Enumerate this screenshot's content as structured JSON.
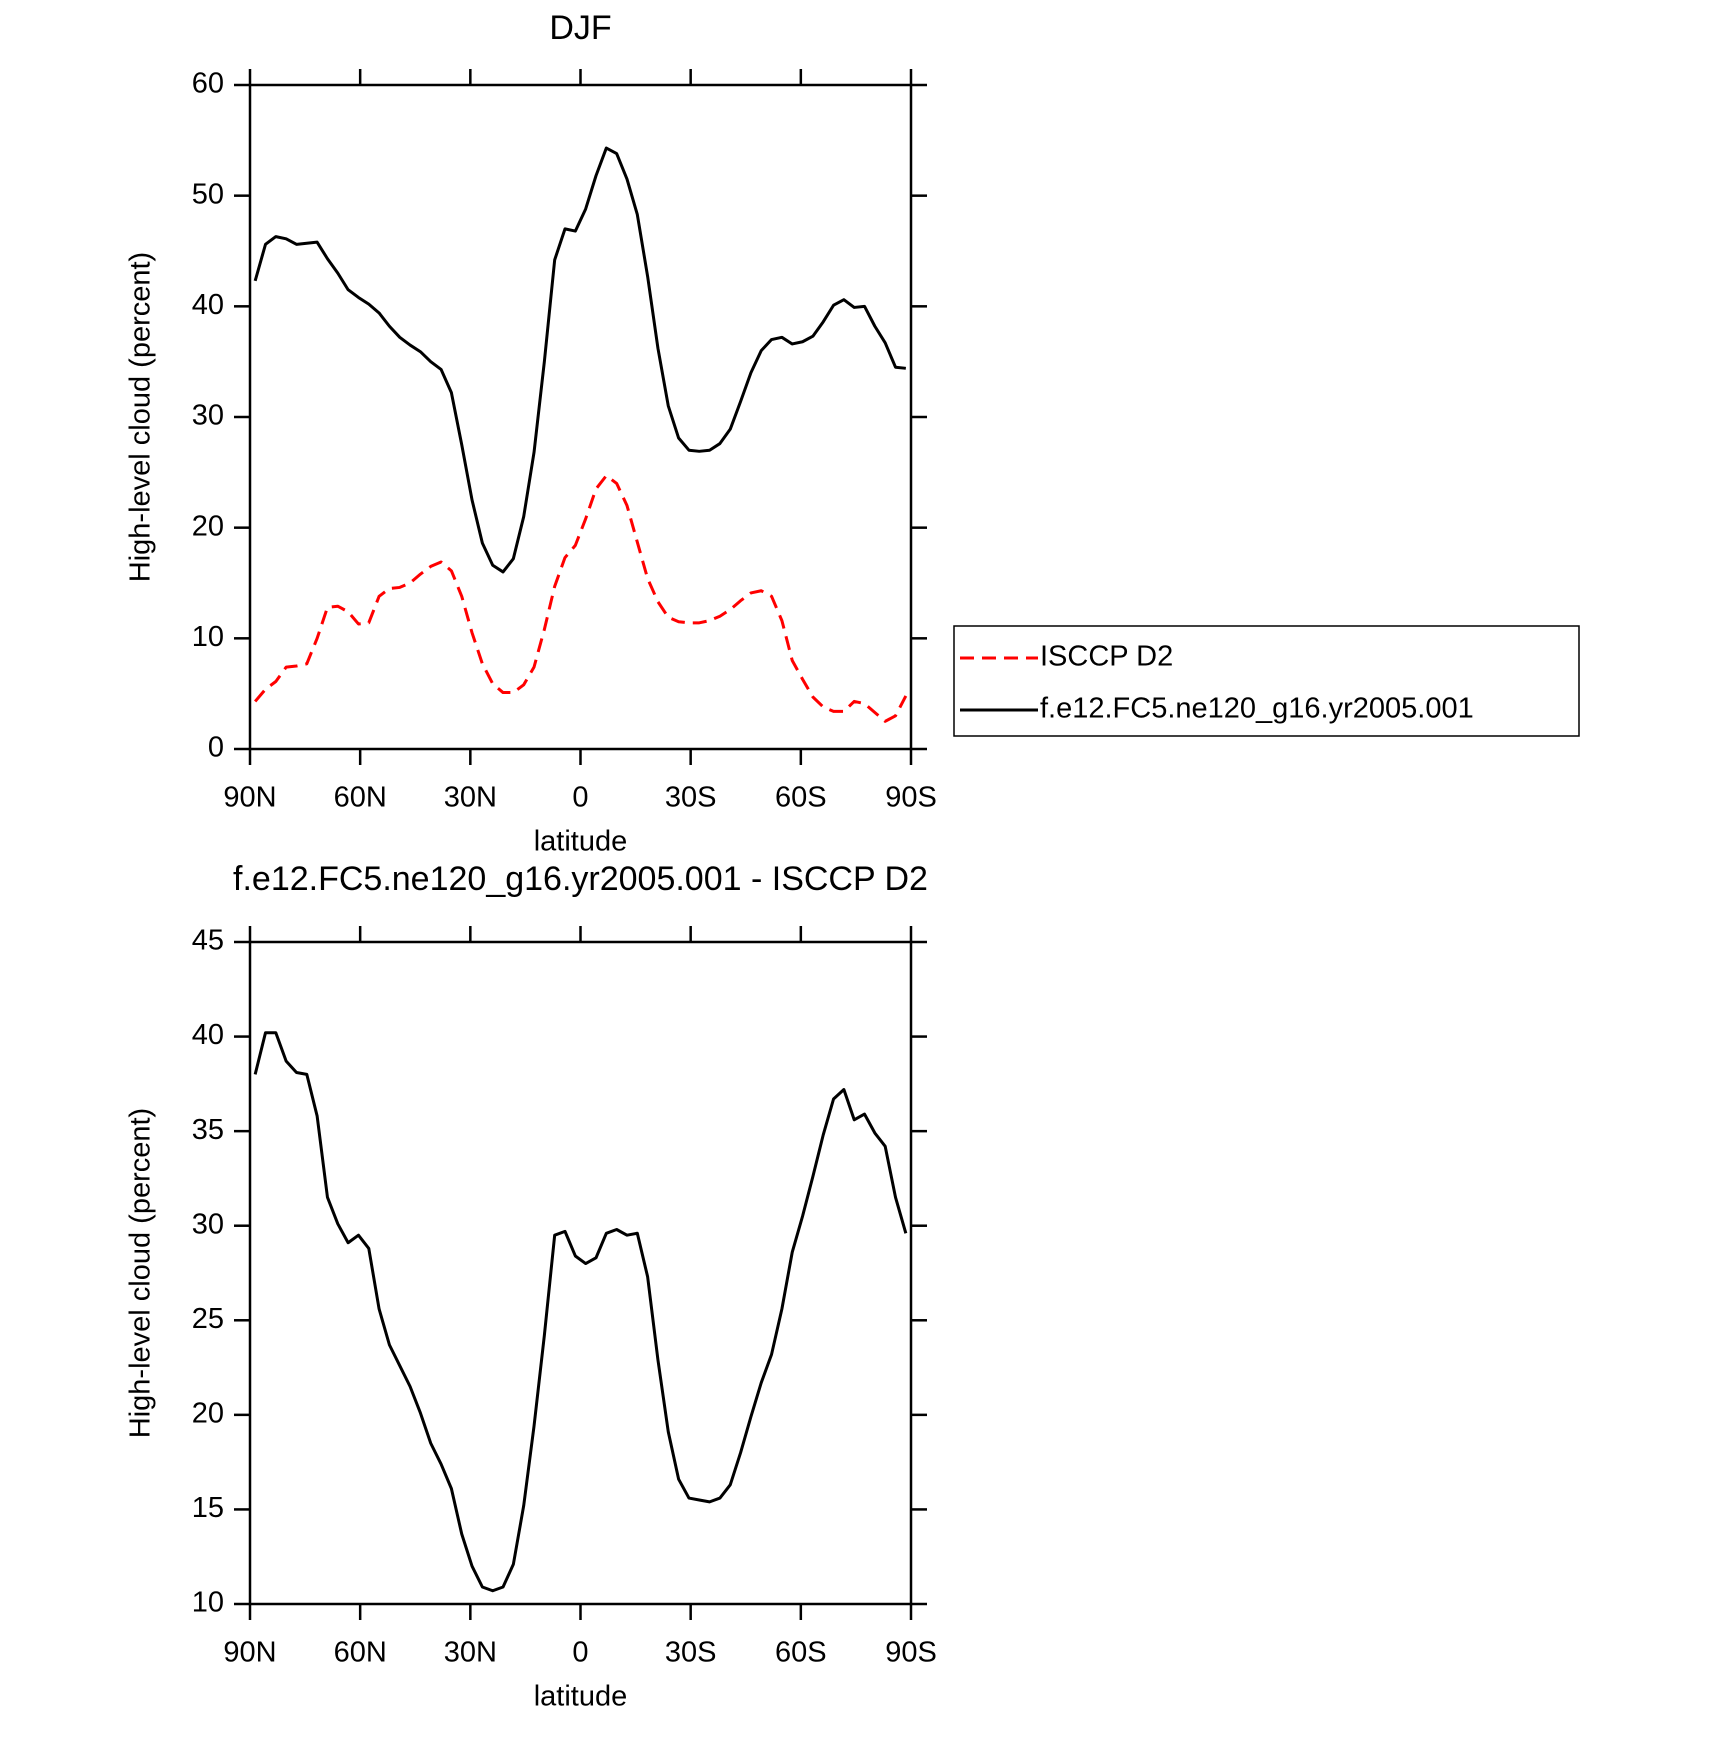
{
  "chart_data": [
    {
      "type": "line",
      "title": "DJF",
      "xlabel": "latitude",
      "ylabel": "High-level cloud (percent)",
      "x": [
        88.59375,
        85.78125,
        82.96875,
        80.15625,
        77.34375,
        74.53125,
        71.71875,
        68.90625,
        66.09375,
        63.28125,
        60.46875,
        57.65625,
        54.84375,
        52.03125,
        49.21875,
        46.40625,
        43.59375,
        40.78125,
        37.96875,
        35.15625,
        32.34375,
        29.53125,
        26.71875,
        23.90625,
        21.09375,
        18.28125,
        15.46875,
        12.65625,
        9.84375,
        7.03125,
        4.21875,
        1.40625,
        -1.40625,
        -4.21875,
        -7.03125,
        -9.84375,
        -12.65625,
        -15.46875,
        -18.28125,
        -21.09375,
        -23.90625,
        -26.71875,
        -29.53125,
        -32.34375,
        -35.15625,
        -37.96875,
        -40.78125,
        -43.59375,
        -46.40625,
        -49.21875,
        -52.03125,
        -54.84375,
        -57.65625,
        -60.46875,
        -63.28125,
        -66.09375,
        -68.90625,
        -71.71875,
        -74.53125,
        -77.34375,
        -80.15625,
        -82.96875,
        -85.78125,
        -88.59375
      ],
      "xlim": [
        90,
        -90
      ],
      "xticks": [
        {
          "value": 90,
          "label": "90N"
        },
        {
          "value": 60,
          "label": "60N"
        },
        {
          "value": 30,
          "label": "30N"
        },
        0,
        {
          "value": -30,
          "label": "30S"
        },
        {
          "value": -60,
          "label": "60S"
        },
        {
          "value": -90,
          "label": "90S"
        }
      ],
      "ylim": [
        0,
        60
      ],
      "yticks": [
        0,
        10,
        20,
        30,
        40,
        50,
        60
      ],
      "legend": "right",
      "series": [
        {
          "name": "ISCCP D2",
          "color": "#ff0000",
          "dashed": true,
          "values": [
            4.3,
            5.4,
            6.1,
            7.4,
            7.5,
            7.7,
            10.0,
            12.8,
            12.9,
            12.4,
            11.3,
            11.4,
            13.8,
            14.5,
            14.6,
            15.0,
            15.8,
            16.5,
            16.9,
            16.1,
            13.8,
            10.5,
            7.7,
            5.9,
            5.1,
            5.1,
            5.8,
            7.4,
            10.8,
            14.7,
            17.3,
            18.4,
            20.8,
            23.5,
            24.7,
            24.0,
            22.0,
            18.7,
            15.4,
            13.3,
            11.9,
            11.5,
            11.4,
            11.4,
            11.6,
            12.0,
            12.6,
            13.4,
            14.1,
            14.3,
            13.8,
            11.6,
            8.0,
            6.3,
            4.7,
            3.8,
            3.4,
            3.4,
            4.3,
            4.1,
            3.3,
            2.5,
            3.0,
            4.8
          ]
        },
        {
          "name": "f.e12.FC5.ne120_g16.yr2005.001",
          "color": "#000000",
          "dashed": false,
          "values": [
            42.3,
            45.6,
            46.3,
            46.1,
            45.6,
            45.7,
            45.8,
            44.3,
            43.0,
            41.5,
            40.8,
            40.2,
            39.4,
            38.2,
            37.2,
            36.5,
            35.9,
            35.0,
            34.3,
            32.2,
            27.5,
            22.5,
            18.6,
            16.6,
            16.0,
            17.2,
            21.0,
            26.8,
            35.0,
            44.2,
            47.0,
            46.8,
            48.8,
            51.8,
            54.3,
            53.8,
            51.5,
            48.3,
            42.7,
            36.2,
            31.0,
            28.1,
            27.0,
            26.9,
            27.0,
            27.6,
            28.9,
            31.4,
            34.0,
            36.0,
            37.0,
            37.2,
            36.6,
            36.8,
            37.3,
            38.6,
            40.1,
            40.6,
            39.9,
            40.0,
            38.2,
            36.7,
            34.5,
            34.4
          ]
        }
      ]
    },
    {
      "type": "line",
      "title": "f.e12.FC5.ne120_g16.yr2005.001 - ISCCP D2",
      "xlabel": "latitude",
      "ylabel": "High-level cloud (percent)",
      "x": [
        88.59375,
        85.78125,
        82.96875,
        80.15625,
        77.34375,
        74.53125,
        71.71875,
        68.90625,
        66.09375,
        63.28125,
        60.46875,
        57.65625,
        54.84375,
        52.03125,
        49.21875,
        46.40625,
        43.59375,
        40.78125,
        37.96875,
        35.15625,
        32.34375,
        29.53125,
        26.71875,
        23.90625,
        21.09375,
        18.28125,
        15.46875,
        12.65625,
        9.84375,
        7.03125,
        4.21875,
        1.40625,
        -1.40625,
        -4.21875,
        -7.03125,
        -9.84375,
        -12.65625,
        -15.46875,
        -18.28125,
        -21.09375,
        -23.90625,
        -26.71875,
        -29.53125,
        -32.34375,
        -35.15625,
        -37.96875,
        -40.78125,
        -43.59375,
        -46.40625,
        -49.21875,
        -52.03125,
        -54.84375,
        -57.65625,
        -60.46875,
        -63.28125,
        -66.09375,
        -68.90625,
        -71.71875,
        -74.53125,
        -77.34375,
        -80.15625,
        -82.96875,
        -85.78125,
        -88.59375
      ],
      "xlim": [
        90,
        -90
      ],
      "xticks": [
        {
          "value": 90,
          "label": "90N"
        },
        {
          "value": 60,
          "label": "60N"
        },
        {
          "value": 30,
          "label": "30N"
        },
        0,
        {
          "value": -30,
          "label": "30S"
        },
        {
          "value": -60,
          "label": "60S"
        },
        {
          "value": -90,
          "label": "90S"
        }
      ],
      "ylim": [
        10,
        45
      ],
      "yticks": [
        10,
        15,
        20,
        25,
        30,
        35,
        40,
        45
      ],
      "series": [
        {
          "color": "#000000",
          "dashed": false,
          "values": [
            38.0,
            40.2,
            40.2,
            38.7,
            38.1,
            38.0,
            35.8,
            31.5,
            30.1,
            29.1,
            29.5,
            28.8,
            25.6,
            23.7,
            22.6,
            21.5,
            20.1,
            18.5,
            17.4,
            16.1,
            13.7,
            12.0,
            10.9,
            10.7,
            10.9,
            12.1,
            15.2,
            19.4,
            24.2,
            29.5,
            29.7,
            28.4,
            28.0,
            28.3,
            29.6,
            29.8,
            29.5,
            29.6,
            27.3,
            22.9,
            19.1,
            16.6,
            15.6,
            15.5,
            15.4,
            15.6,
            16.3,
            18.0,
            19.9,
            21.7,
            23.2,
            25.6,
            28.6,
            30.5,
            32.6,
            34.8,
            36.7,
            37.2,
            35.6,
            35.9,
            34.9,
            34.2,
            31.5,
            29.6
          ]
        }
      ]
    }
  ]
}
